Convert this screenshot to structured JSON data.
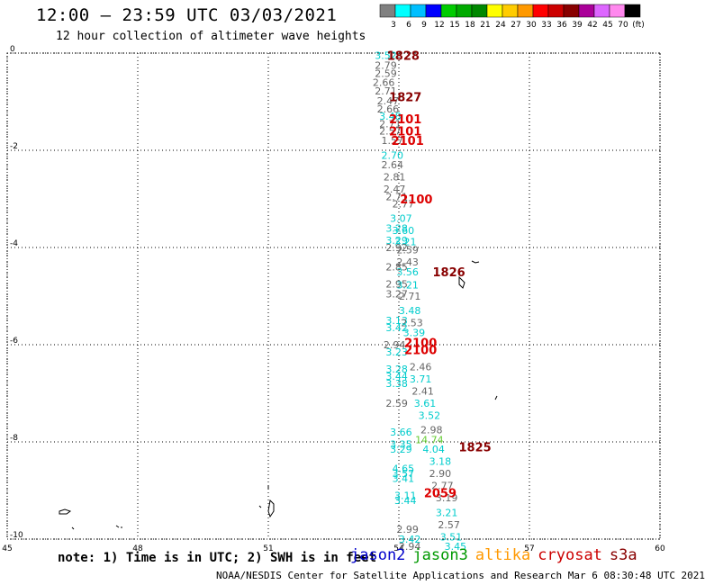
{
  "header": {
    "title": "12:00 – 23:59 UTC 03/03/2021",
    "subtitle": "12 hour collection of altimeter wave heights"
  },
  "colorbar": {
    "colors": [
      "#808080",
      "#00ffff",
      "#00bfff",
      "#0000ff",
      "#00cc00",
      "#00aa00",
      "#008800",
      "#ffff00",
      "#ffcc00",
      "#ff9900",
      "#ff0000",
      "#cc0000",
      "#880000",
      "#aa0099",
      "#dd66ff",
      "#ff88ee",
      "#000000"
    ],
    "labels": [
      "3",
      "6",
      "9",
      "12",
      "15",
      "18",
      "21",
      "24",
      "27",
      "30",
      "33",
      "36",
      "39",
      "42",
      "45",
      "70",
      "(ft)"
    ]
  },
  "note": "note: 1) Time is in UTC; 2) SWH is in feet",
  "satellites": [
    {
      "name": "jason2",
      "color": "#0000cc"
    },
    {
      "name": "jason3",
      "color": "#009900"
    },
    {
      "name": "altika",
      "color": "#ff9900"
    },
    {
      "name": "cryosat",
      "color": "#cc0000"
    },
    {
      "name": "s3a",
      "color": "#880000"
    }
  ],
  "footer": "NOAA/NESDIS Center for Satellite Applications and Research   Mar  6 08:30:48 UTC 2021",
  "chart_data": {
    "type": "scatter",
    "title": "12:00 – 23:59 UTC 03/03/2021",
    "subtitle": "12 hour collection of altimeter wave heights",
    "xlim": [
      45,
      60
    ],
    "ylim": [
      -10,
      0
    ],
    "x_ticks": [
      "45",
      "48",
      "51",
      "54",
      "57",
      "60"
    ],
    "y_ticks": [
      "0",
      "-2",
      "-4",
      "-6",
      "-8",
      "-10"
    ],
    "grid": true,
    "swh_labels": [
      {
        "x": 53.7,
        "y": -0.05,
        "text": "3.52",
        "color": "#00cccc"
      },
      {
        "x": 53.7,
        "y": -0.25,
        "text": "2.79",
        "color": "#666666"
      },
      {
        "x": 53.7,
        "y": -0.42,
        "text": "2.59",
        "color": "#666666"
      },
      {
        "x": 53.65,
        "y": -0.6,
        "text": "2.66",
        "color": "#666666"
      },
      {
        "x": 53.7,
        "y": -0.78,
        "text": "2.71",
        "color": "#666666"
      },
      {
        "x": 53.75,
        "y": -0.98,
        "text": "2.47",
        "color": "#666666"
      },
      {
        "x": 53.75,
        "y": -1.15,
        "text": "2.66",
        "color": "#666666"
      },
      {
        "x": 53.8,
        "y": -1.3,
        "text": "3.48",
        "color": "#00cccc"
      },
      {
        "x": 53.8,
        "y": -1.45,
        "text": "2.71",
        "color": "#666666"
      },
      {
        "x": 53.8,
        "y": -1.6,
        "text": "2.57",
        "color": "#666666"
      },
      {
        "x": 53.85,
        "y": -1.8,
        "text": "1.57",
        "color": "#666666"
      },
      {
        "x": 53.85,
        "y": -2.1,
        "text": "2.70",
        "color": "#00cccc"
      },
      {
        "x": 53.85,
        "y": -2.3,
        "text": "2.64",
        "color": "#666666"
      },
      {
        "x": 53.9,
        "y": -2.55,
        "text": "2.81",
        "color": "#666666"
      },
      {
        "x": 53.9,
        "y": -2.8,
        "text": "2.47",
        "color": "#666666"
      },
      {
        "x": 53.95,
        "y": -2.95,
        "text": "2.71",
        "color": "#666666"
      },
      {
        "x": 54.1,
        "y": -3.1,
        "text": "2.77",
        "color": "#666666"
      },
      {
        "x": 54.05,
        "y": -3.4,
        "text": "3.07",
        "color": "#00cccc"
      },
      {
        "x": 53.95,
        "y": -3.6,
        "text": "3.28",
        "color": "#00cccc"
      },
      {
        "x": 54.1,
        "y": -3.65,
        "text": "3.60",
        "color": "#00cccc"
      },
      {
        "x": 53.95,
        "y": -3.85,
        "text": "3.29",
        "color": "#00cccc"
      },
      {
        "x": 54.15,
        "y": -3.88,
        "text": "3.21",
        "color": "#00cccc"
      },
      {
        "x": 53.95,
        "y": -4.0,
        "text": "2.92",
        "color": "#666666"
      },
      {
        "x": 54.2,
        "y": -4.05,
        "text": "2.59",
        "color": "#666666"
      },
      {
        "x": 54.2,
        "y": -4.3,
        "text": "2.43",
        "color": "#666666"
      },
      {
        "x": 53.95,
        "y": -4.4,
        "text": "2.85",
        "color": "#666666"
      },
      {
        "x": 54.2,
        "y": -4.5,
        "text": "3.56",
        "color": "#00cccc"
      },
      {
        "x": 53.95,
        "y": -4.75,
        "text": "2.95",
        "color": "#666666"
      },
      {
        "x": 54.2,
        "y": -4.77,
        "text": "3.21",
        "color": "#00cccc"
      },
      {
        "x": 53.95,
        "y": -4.95,
        "text": "3.27",
        "color": "#666666"
      },
      {
        "x": 54.25,
        "y": -5.0,
        "text": "2.71",
        "color": "#666666"
      },
      {
        "x": 54.25,
        "y": -5.3,
        "text": "3.48",
        "color": "#00cccc"
      },
      {
        "x": 53.95,
        "y": -5.5,
        "text": "3.13",
        "color": "#00cccc"
      },
      {
        "x": 54.3,
        "y": -5.55,
        "text": "2.53",
        "color": "#666666"
      },
      {
        "x": 53.95,
        "y": -5.65,
        "text": "3.42",
        "color": "#00cccc"
      },
      {
        "x": 54.35,
        "y": -5.75,
        "text": "3.39",
        "color": "#00cccc"
      },
      {
        "x": 53.9,
        "y": -6.0,
        "text": "2.94",
        "color": "#666666"
      },
      {
        "x": 53.95,
        "y": -6.15,
        "text": "3.23",
        "color": "#00cccc"
      },
      {
        "x": 54.5,
        "y": -6.45,
        "text": "2.46",
        "color": "#666666"
      },
      {
        "x": 53.95,
        "y": -6.5,
        "text": "3.28",
        "color": "#00cccc"
      },
      {
        "x": 53.95,
        "y": -6.65,
        "text": "3.44",
        "color": "#00cccc"
      },
      {
        "x": 54.5,
        "y": -6.7,
        "text": "3.71",
        "color": "#00cccc"
      },
      {
        "x": 53.95,
        "y": -6.8,
        "text": "3.38",
        "color": "#00cccc"
      },
      {
        "x": 54.55,
        "y": -6.95,
        "text": "2.41",
        "color": "#666666"
      },
      {
        "x": 53.95,
        "y": -7.2,
        "text": "2.59",
        "color": "#666666"
      },
      {
        "x": 54.6,
        "y": -7.2,
        "text": "3.61",
        "color": "#00cccc"
      },
      {
        "x": 54.7,
        "y": -7.45,
        "text": "3.52",
        "color": "#00cccc"
      },
      {
        "x": 54.75,
        "y": -7.75,
        "text": "2.98",
        "color": "#666666"
      },
      {
        "x": 54.05,
        "y": -7.8,
        "text": "3.66",
        "color": "#00cccc"
      },
      {
        "x": 54.7,
        "y": -7.95,
        "text": "14.74",
        "color": "#66cc33"
      },
      {
        "x": 54.05,
        "y": -8.05,
        "text": "3.35",
        "color": "#00cccc"
      },
      {
        "x": 54.05,
        "y": -8.15,
        "text": "3.29",
        "color": "#00cccc"
      },
      {
        "x": 54.8,
        "y": -8.15,
        "text": "4.04",
        "color": "#00cccc"
      },
      {
        "x": 54.95,
        "y": -8.4,
        "text": "3.18",
        "color": "#00cccc"
      },
      {
        "x": 54.1,
        "y": -8.55,
        "text": "4.65",
        "color": "#00cccc"
      },
      {
        "x": 54.1,
        "y": -8.65,
        "text": "3.57",
        "color": "#00cccc"
      },
      {
        "x": 54.1,
        "y": -8.75,
        "text": "3.41",
        "color": "#00cccc"
      },
      {
        "x": 54.95,
        "y": -8.65,
        "text": "2.90",
        "color": "#666666"
      },
      {
        "x": 55.0,
        "y": -8.9,
        "text": "2.77",
        "color": "#666666"
      },
      {
        "x": 54.15,
        "y": -9.1,
        "text": "3.11",
        "color": "#00cccc"
      },
      {
        "x": 55.1,
        "y": -9.15,
        "text": "3.19",
        "color": "#666666"
      },
      {
        "x": 54.15,
        "y": -9.2,
        "text": "3.44",
        "color": "#00cccc"
      },
      {
        "x": 55.1,
        "y": -9.45,
        "text": "3.21",
        "color": "#00cccc"
      },
      {
        "x": 55.15,
        "y": -9.7,
        "text": "2.57",
        "color": "#666666"
      },
      {
        "x": 54.2,
        "y": -9.8,
        "text": "2.99",
        "color": "#666666"
      },
      {
        "x": 55.2,
        "y": -9.95,
        "text": "3.51",
        "color": "#00cccc"
      },
      {
        "x": 54.25,
        "y": -10.0,
        "text": "3.42",
        "color": "#00cccc"
      },
      {
        "x": 54.25,
        "y": -10.15,
        "text": "2.94",
        "color": "#666666"
      },
      {
        "x": 55.3,
        "y": -10.15,
        "text": "3.45",
        "color": "#00cccc"
      }
    ],
    "time_labels": [
      {
        "x": 54.1,
        "y": -0.05,
        "text": "1828",
        "color": "#880000"
      },
      {
        "x": 54.15,
        "y": -0.9,
        "text": "1827",
        "color": "#880000"
      },
      {
        "x": 54.15,
        "y": -1.35,
        "text": "2101",
        "color": "#dd0000"
      },
      {
        "x": 54.15,
        "y": -1.6,
        "text": "2101",
        "color": "#dd0000"
      },
      {
        "x": 54.2,
        "y": -1.8,
        "text": "2101",
        "color": "#dd0000"
      },
      {
        "x": 54.4,
        "y": -3.0,
        "text": "2100",
        "color": "#dd0000"
      },
      {
        "x": 55.15,
        "y": -4.5,
        "text": "1826",
        "color": "#880000"
      },
      {
        "x": 54.5,
        "y": -5.95,
        "text": "2100",
        "color": "#dd0000"
      },
      {
        "x": 54.5,
        "y": -6.1,
        "text": "2100",
        "color": "#dd0000"
      },
      {
        "x": 55.75,
        "y": -8.1,
        "text": "1825",
        "color": "#880000"
      },
      {
        "x": 54.95,
        "y": -9.05,
        "text": "2059",
        "color": "#dd0000"
      }
    ]
  }
}
